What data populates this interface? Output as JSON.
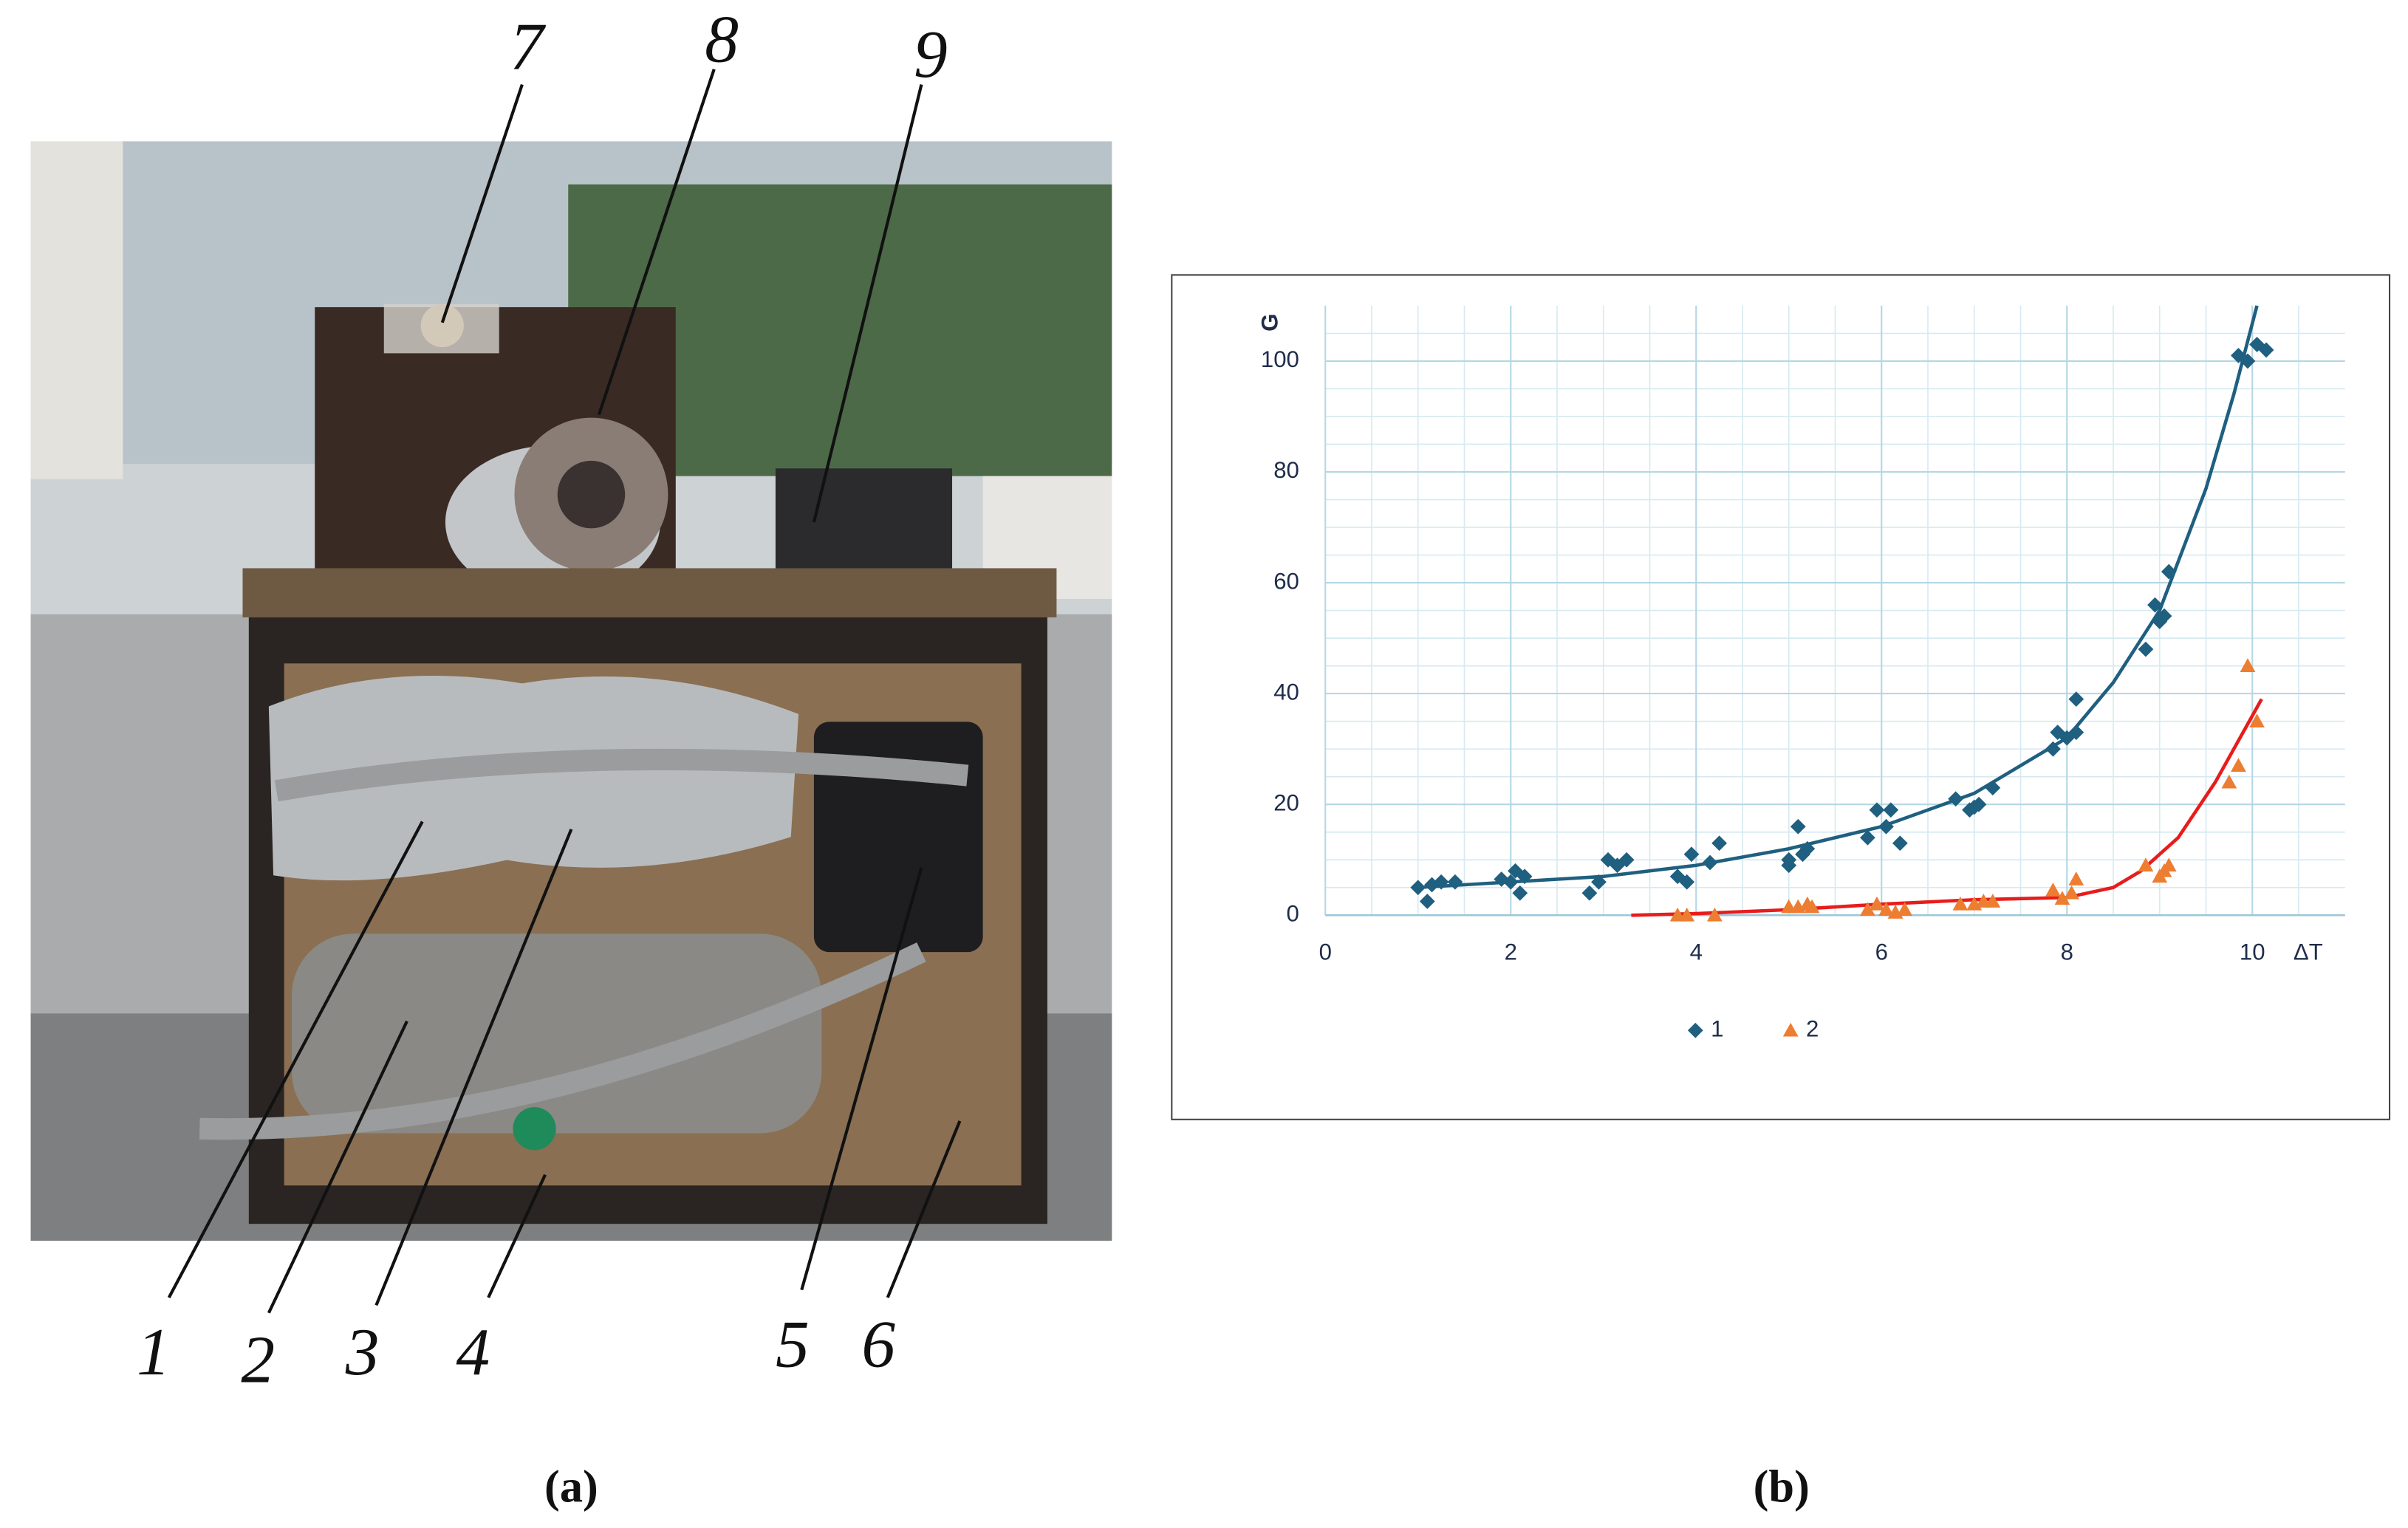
{
  "photo": {
    "labels": [
      "1",
      "2",
      "3",
      "4",
      "5",
      "6",
      "7",
      "8",
      "9"
    ],
    "caption": "(a)"
  },
  "chart_caption": "(b)",
  "chart_data": {
    "type": "scatter",
    "x_label": "ΔT",
    "y_label": "G",
    "xlim": [
      0,
      11
    ],
    "ylim": [
      0,
      110
    ],
    "xticks": [
      0,
      2,
      4,
      6,
      8,
      10
    ],
    "yticks": [
      0,
      20,
      40,
      60,
      80,
      100
    ],
    "grid": true,
    "legend": "bottom",
    "series": [
      {
        "name": "1",
        "color": "#1f5f80",
        "marker": "diamond",
        "x": [
          1.0,
          1.1,
          1.15,
          1.25,
          1.4,
          1.9,
          2.0,
          2.05,
          2.1,
          2.15,
          2.85,
          2.95,
          3.05,
          3.15,
          3.25,
          3.8,
          3.9,
          3.95,
          4.15,
          4.25,
          5.0,
          5.0,
          5.1,
          5.15,
          5.2,
          5.85,
          5.95,
          6.05,
          6.1,
          6.2,
          6.8,
          6.95,
          7.0,
          7.05,
          7.2,
          7.85,
          7.9,
          8.0,
          8.1,
          8.1,
          8.85,
          8.95,
          9.0,
          9.05,
          9.1,
          9.85,
          9.95,
          10.05,
          10.15
        ],
        "values": [
          5,
          2.5,
          5.5,
          6,
          6,
          6.5,
          6,
          8,
          4,
          7,
          4,
          6,
          10,
          9,
          10,
          7,
          6,
          11,
          9.5,
          13,
          9,
          10,
          16,
          11,
          12,
          14,
          19,
          16,
          19,
          13,
          21,
          19,
          19.5,
          20,
          23,
          30,
          33,
          32,
          33,
          39,
          48,
          56,
          53,
          54,
          62,
          101,
          100,
          103,
          102
        ],
        "trend": {
          "color": "#1f5f80",
          "x": [
            1,
            2,
            3,
            4,
            5,
            6,
            7,
            8,
            8.5,
            9,
            9.5,
            9.8,
            10.05
          ],
          "values": [
            5,
            6,
            7,
            9,
            12,
            16,
            22,
            32,
            42,
            55,
            77,
            94,
            110
          ]
        }
      },
      {
        "name": "2",
        "color": "#ed7d31",
        "marker": "triangle",
        "x": [
          3.8,
          3.9,
          4.2,
          5.0,
          5.1,
          5.2,
          5.25,
          5.85,
          5.95,
          6.05,
          6.15,
          6.25,
          6.85,
          7.0,
          7.1,
          7.2,
          7.85,
          7.95,
          8.05,
          8.1,
          8.85,
          9.0,
          9.05,
          9.1,
          9.75,
          9.85,
          9.95,
          10.05
        ],
        "values": [
          0,
          0,
          0,
          1.5,
          1.5,
          2,
          1.5,
          1,
          2,
          1,
          0.5,
          1,
          2,
          2,
          2.5,
          2.5,
          4.5,
          3,
          4,
          6.5,
          9,
          7,
          8,
          9,
          24,
          27,
          45,
          35
        ],
        "trend": {
          "color": "#e81c1c",
          "x": [
            3.3,
            4,
            5,
            6,
            7,
            7.5,
            8,
            8.5,
            8.8,
            9.2,
            9.6,
            10.1
          ],
          "values": [
            0,
            0.3,
            1,
            2,
            2.8,
            3,
            3.2,
            5,
            8,
            14,
            24,
            39
          ]
        }
      }
    ]
  }
}
